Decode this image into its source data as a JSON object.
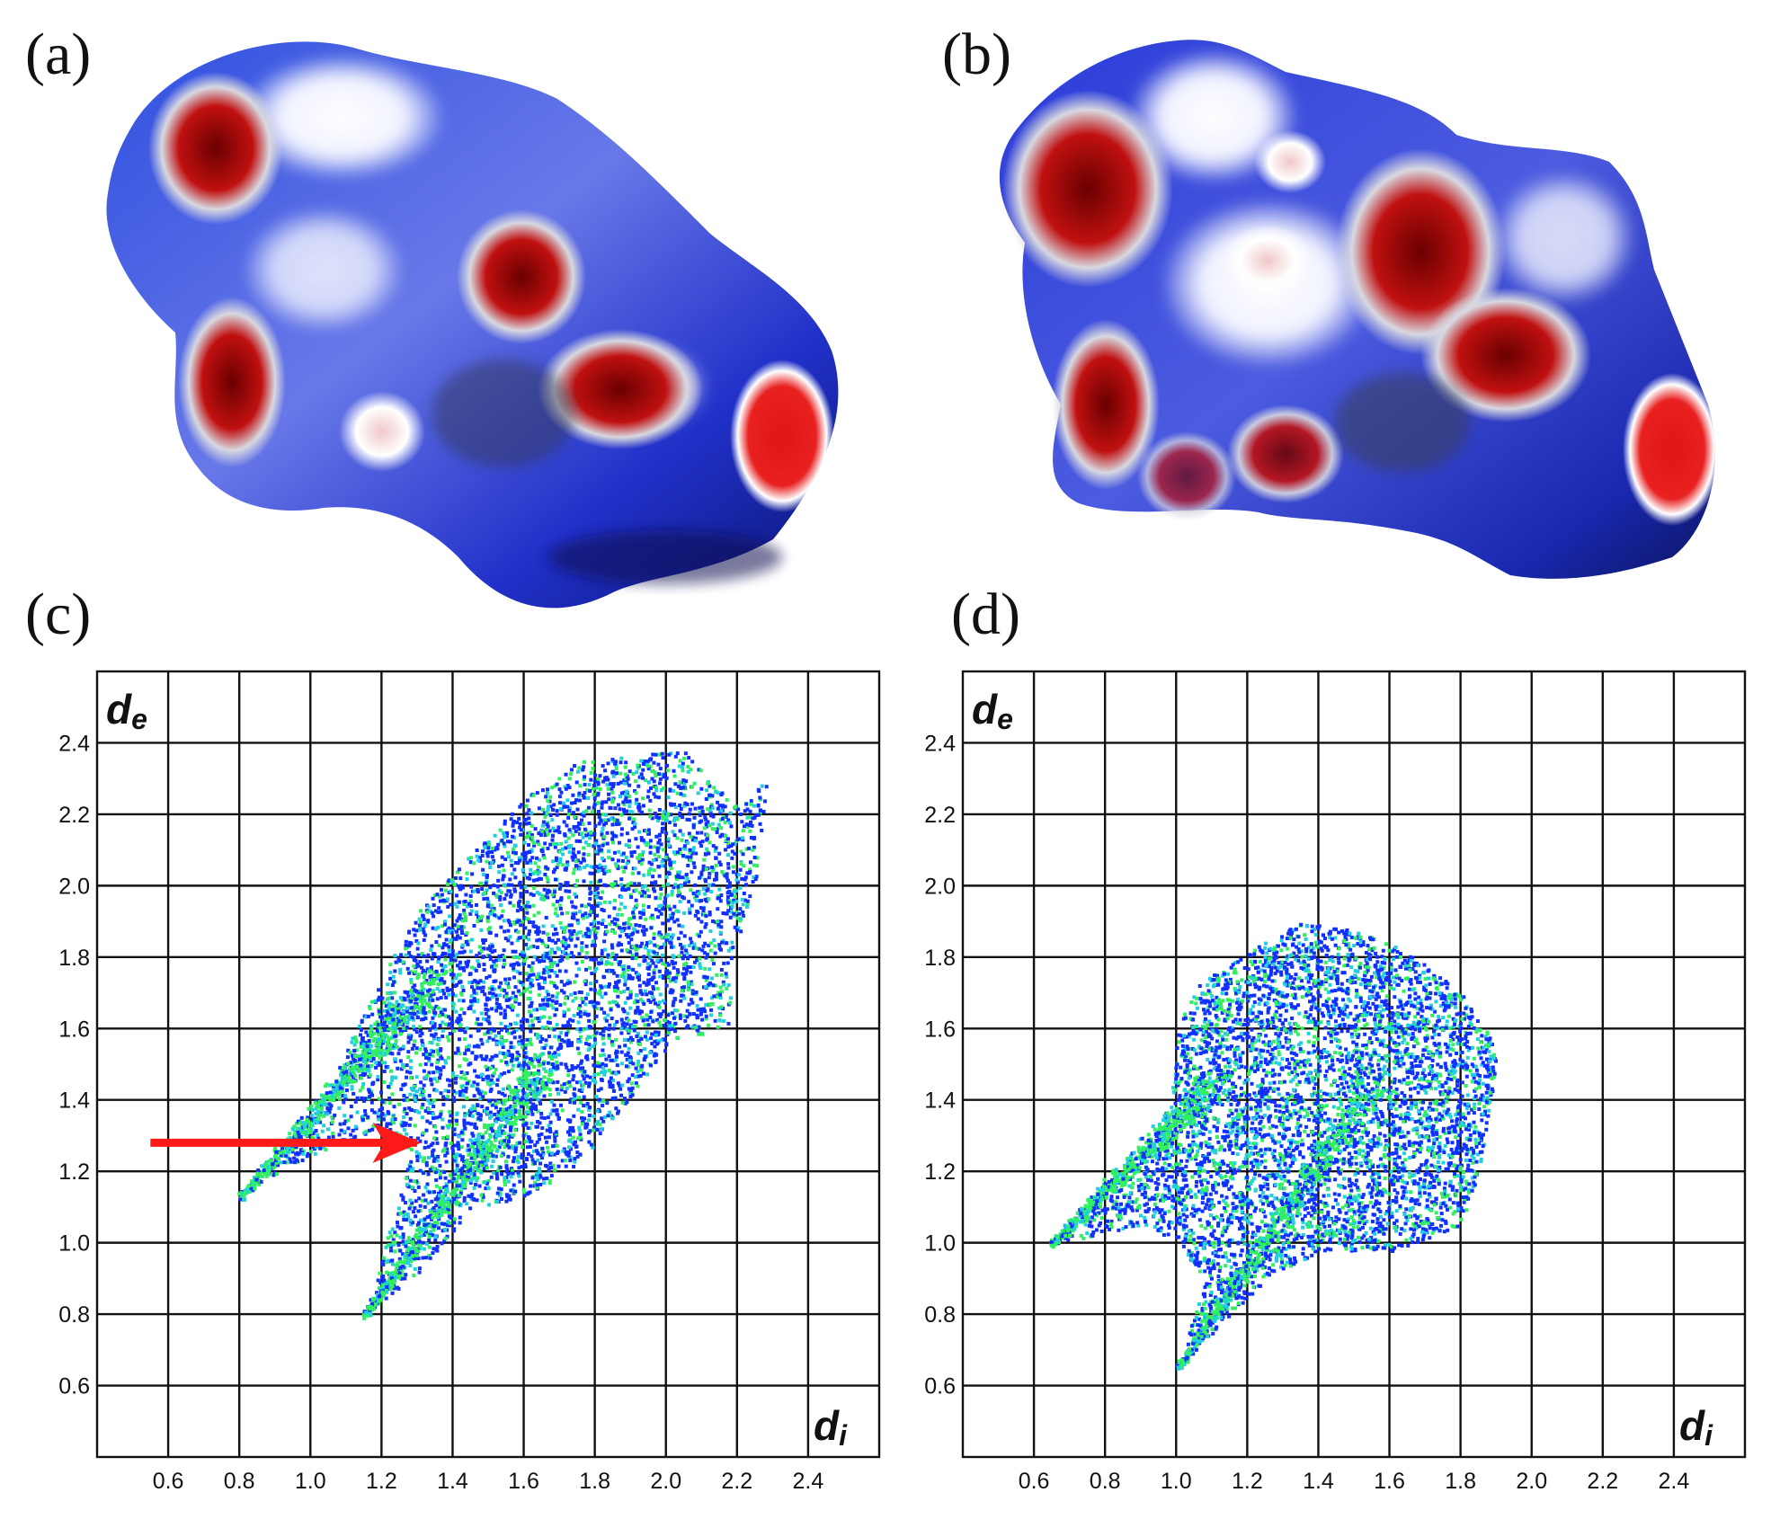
{
  "panels": {
    "a": "(a)",
    "b": "(b)",
    "c": "(c)",
    "d": "(d)"
  },
  "colors": {
    "surface_blue": "#1f2fd0",
    "surface_white": "#ffffff",
    "surface_red": "#d01010",
    "plot_blue": "#1030ff",
    "plot_cyan": "#20d0e0",
    "plot_green": "#30f060",
    "arrow_red": "#ff1a1a"
  },
  "chart_data": [
    {
      "type": "scatter",
      "panel": "(c)",
      "xlabel": "d",
      "xlabel_sub": "i",
      "ylabel": "d",
      "ylabel_sub": "e",
      "xlim": [
        0.4,
        2.6
      ],
      "ylim": [
        0.4,
        2.6
      ],
      "x_ticks": [
        "0.6",
        "0.8",
        "1.0",
        "1.2",
        "1.4",
        "1.6",
        "1.8",
        "2.0",
        "2.2",
        "2.4"
      ],
      "y_ticks": [
        "2.4",
        "2.2",
        "2.0",
        "1.8",
        "1.6",
        "1.4",
        "1.2",
        "1.0",
        "0.8",
        "0.6"
      ],
      "grid": true,
      "envelope": [
        [
          0.8,
          1.13
        ],
        [
          1.0,
          1.35
        ],
        [
          1.1,
          1.55
        ],
        [
          1.2,
          1.75
        ],
        [
          1.3,
          1.93
        ],
        [
          1.45,
          2.1
        ],
        [
          1.6,
          2.25
        ],
        [
          1.75,
          2.35
        ],
        [
          1.9,
          2.37
        ],
        [
          2.05,
          2.38
        ],
        [
          2.12,
          2.3
        ],
        [
          2.2,
          2.22
        ],
        [
          2.28,
          2.3
        ],
        [
          2.25,
          2.0
        ],
        [
          2.18,
          1.8
        ],
        [
          2.18,
          1.62
        ],
        [
          2.0,
          1.55
        ],
        [
          1.85,
          1.35
        ],
        [
          1.75,
          1.22
        ],
        [
          1.6,
          1.13
        ],
        [
          1.45,
          1.1
        ],
        [
          1.3,
          0.92
        ],
        [
          1.15,
          0.8
        ],
        [
          1.28,
          1.25
        ],
        [
          1.2,
          1.33
        ],
        [
          0.95,
          1.22
        ]
      ],
      "spikes": [
        {
          "tip": [
            0.8,
            1.13
          ],
          "head": [
            1.35,
            1.75
          ]
        },
        {
          "tip": [
            1.15,
            0.8
          ],
          "head": [
            1.65,
            1.5
          ]
        }
      ],
      "annotation": {
        "type": "arrow",
        "from": [
          0.55,
          1.28
        ],
        "to": [
          1.3,
          1.28
        ]
      }
    },
    {
      "type": "scatter",
      "panel": "(d)",
      "xlabel": "d",
      "xlabel_sub": "i",
      "ylabel": "d",
      "ylabel_sub": "e",
      "xlim": [
        0.4,
        2.6
      ],
      "ylim": [
        0.4,
        2.6
      ],
      "x_ticks": [
        "0.6",
        "0.8",
        "1.0",
        "1.2",
        "1.4",
        "1.6",
        "1.8",
        "2.0",
        "2.2",
        "2.4"
      ],
      "y_ticks": [
        "2.4",
        "2.2",
        "2.0",
        "1.8",
        "1.6",
        "1.4",
        "1.2",
        "1.0",
        "0.8",
        "0.6"
      ],
      "grid": true,
      "envelope": [
        [
          0.65,
          1.0
        ],
        [
          0.9,
          1.2
        ],
        [
          0.98,
          1.4
        ],
        [
          1.0,
          1.6
        ],
        [
          1.05,
          1.72
        ],
        [
          1.2,
          1.82
        ],
        [
          1.35,
          1.9
        ],
        [
          1.5,
          1.88
        ],
        [
          1.65,
          1.82
        ],
        [
          1.8,
          1.7
        ],
        [
          1.9,
          1.55
        ],
        [
          1.88,
          1.38
        ],
        [
          1.85,
          1.2
        ],
        [
          1.8,
          1.05
        ],
        [
          1.6,
          0.98
        ],
        [
          1.4,
          0.98
        ],
        [
          1.25,
          0.9
        ],
        [
          1.1,
          0.75
        ],
        [
          1.0,
          0.65
        ],
        [
          1.08,
          0.9
        ],
        [
          1.0,
          1.0
        ],
        [
          0.9,
          1.05
        ]
      ],
      "spikes": [
        {
          "tip": [
            0.65,
            1.0
          ],
          "head": [
            1.1,
            1.45
          ]
        },
        {
          "tip": [
            1.0,
            0.65
          ],
          "head": [
            1.55,
            1.45
          ]
        }
      ]
    }
  ]
}
